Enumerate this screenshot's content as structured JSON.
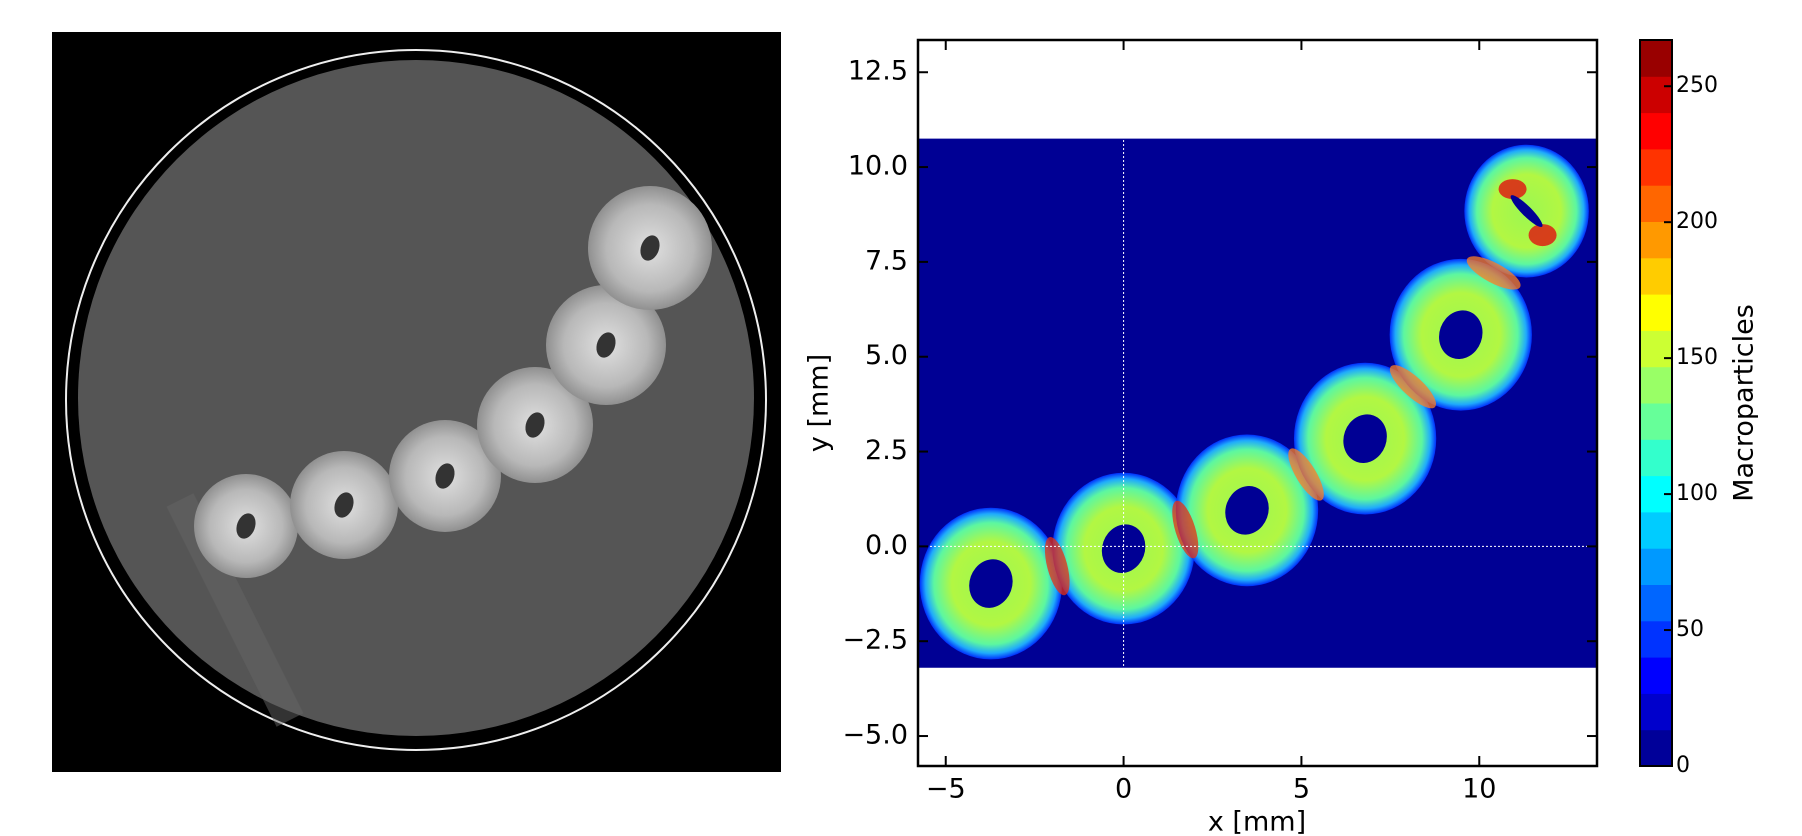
{
  "chart_data": {
    "type": "heatmap",
    "xlabel": "x [mm]",
    "ylabel": "y [mm]",
    "colorbar_label": "Macroparticles",
    "xlim": [
      -5.78,
      13.31
    ],
    "ylim": [
      -5.79,
      13.35
    ],
    "xticks": [
      {
        "value": -5,
        "label": "−5"
      },
      0,
      5,
      10
    ],
    "yticks": [
      {
        "value": -5,
        "label": "−5.0"
      },
      {
        "value": -2.5,
        "label": "−2.5"
      },
      {
        "value": 0,
        "label": "0.0"
      },
      2.5,
      {
        "value": 5,
        "label": "5.0"
      },
      7.5,
      {
        "value": 10,
        "label": "10.0"
      },
      12.5
    ],
    "data_extent": {
      "x": [
        -5.78,
        13.31
      ],
      "y": [
        -3.2,
        10.75
      ]
    },
    "rings": {
      "x": [
        -3.73,
        0,
        3.47,
        6.79,
        9.48,
        11.33
      ],
      "y": [
        -0.98,
        -0.06,
        0.95,
        2.84,
        5.58,
        8.84
      ]
    },
    "clim": [
      0,
      267
    ],
    "cticks": [
      0,
      50,
      100,
      150,
      200,
      250
    ],
    "colormap": "jet"
  }
}
